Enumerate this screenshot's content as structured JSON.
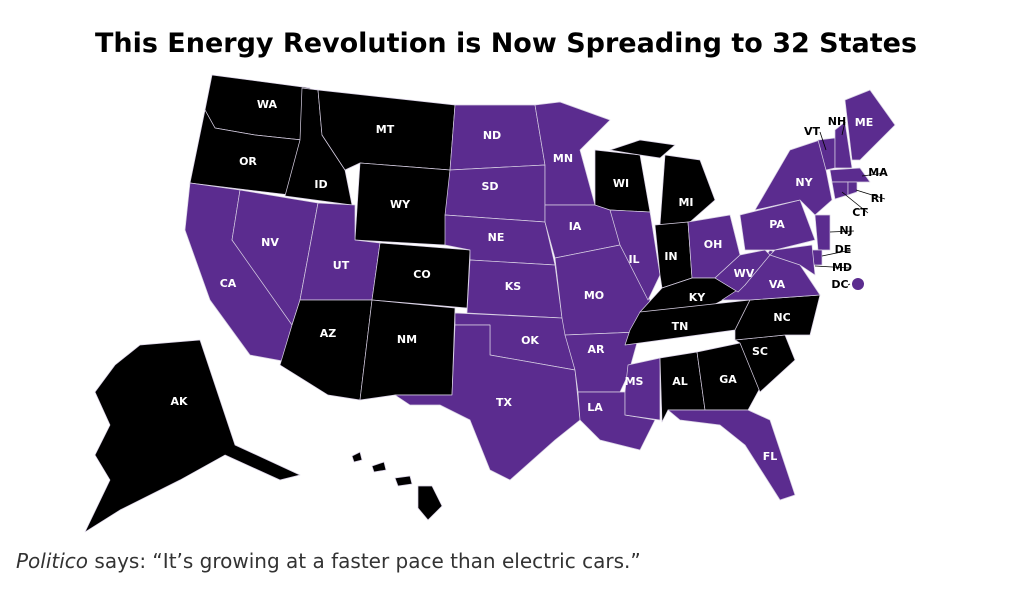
{
  "title": "This Energy Revolution is Now Spreading to 32 States",
  "states": [
    {
      "abbr": "WA",
      "color": "#000000"
    },
    {
      "abbr": "OR",
      "color": "#000000"
    },
    {
      "abbr": "CA",
      "color": "#5b2c8f"
    },
    {
      "abbr": "NV",
      "color": "#5b2c8f"
    },
    {
      "abbr": "ID",
      "color": "#000000"
    },
    {
      "abbr": "MT",
      "color": "#000000"
    },
    {
      "abbr": "WY",
      "color": "#000000"
    },
    {
      "abbr": "UT",
      "color": "#5b2c8f"
    },
    {
      "abbr": "CO",
      "color": "#000000"
    },
    {
      "abbr": "AZ",
      "color": "#000000"
    },
    {
      "abbr": "NM",
      "color": "#000000"
    },
    {
      "abbr": "ND",
      "color": "#5b2c8f"
    },
    {
      "abbr": "SD",
      "color": "#5b2c8f"
    },
    {
      "abbr": "NE",
      "color": "#5b2c8f"
    },
    {
      "abbr": "KS",
      "color": "#5b2c8f"
    },
    {
      "abbr": "OK",
      "color": "#5b2c8f"
    },
    {
      "abbr": "TX",
      "color": "#5b2c8f"
    },
    {
      "abbr": "MN",
      "color": "#5b2c8f"
    },
    {
      "abbr": "IA",
      "color": "#5b2c8f"
    },
    {
      "abbr": "MO",
      "color": "#5b2c8f"
    },
    {
      "abbr": "AR",
      "color": "#5b2c8f"
    },
    {
      "abbr": "LA",
      "color": "#5b2c8f"
    },
    {
      "abbr": "MS",
      "color": "#5b2c8f"
    },
    {
      "abbr": "WI",
      "color": "#000000"
    },
    {
      "abbr": "IL",
      "color": "#5b2c8f"
    },
    {
      "abbr": "MI",
      "color": "#000000"
    },
    {
      "abbr": "IN",
      "color": "#000000"
    },
    {
      "abbr": "OH",
      "color": "#5b2c8f"
    },
    {
      "abbr": "KY",
      "color": "#000000"
    },
    {
      "abbr": "TN",
      "color": "#000000"
    },
    {
      "abbr": "AL",
      "color": "#000000"
    },
    {
      "abbr": "GA",
      "color": "#000000"
    },
    {
      "abbr": "FL",
      "color": "#5b2c8f"
    },
    {
      "abbr": "SC",
      "color": "#000000"
    },
    {
      "abbr": "NC",
      "color": "#000000"
    },
    {
      "abbr": "VA",
      "color": "#5b2c8f"
    },
    {
      "abbr": "WV",
      "color": "#5b2c8f"
    },
    {
      "abbr": "PA",
      "color": "#5b2c8f"
    },
    {
      "abbr": "NY",
      "color": "#5b2c8f"
    },
    {
      "abbr": "VT",
      "color": "#5b2c8f"
    },
    {
      "abbr": "NH",
      "color": "#5b2c8f"
    },
    {
      "abbr": "ME",
      "color": "#5b2c8f"
    },
    {
      "abbr": "MA",
      "color": "#5b2c8f"
    },
    {
      "abbr": "CT",
      "color": "#5b2c8f"
    },
    {
      "abbr": "RI",
      "color": "#5b2c8f"
    },
    {
      "abbr": "NJ",
      "color": "#5b2c8f"
    },
    {
      "abbr": "DE",
      "color": "#5b2c8f"
    },
    {
      "abbr": "MD",
      "color": "#5b2c8f"
    },
    {
      "abbr": "DC",
      "color": "#5b2c8f"
    },
    {
      "abbr": "AK",
      "color": "#000000"
    },
    {
      "abbr": "HI",
      "color": "#000000"
    }
  ],
  "caption": {
    "source": "Politico",
    "text": "says: “It’s growing at a faster pace than electric cars.”"
  }
}
